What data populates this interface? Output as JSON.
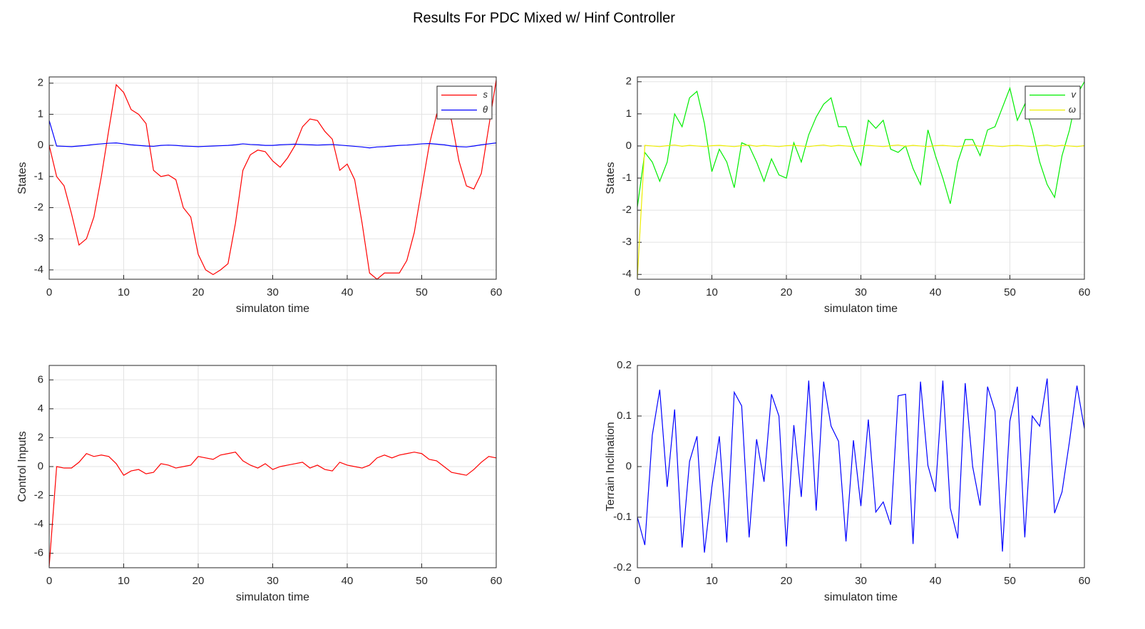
{
  "title": "Results For PDC Mixed w/ Hinf Controller",
  "chart_data": [
    {
      "type": "line",
      "xlabel": "simulaton time",
      "ylabel": "States",
      "x": [
        0,
        1,
        2,
        3,
        4,
        5,
        6,
        7,
        8,
        9,
        10,
        11,
        12,
        13,
        14,
        15,
        16,
        17,
        18,
        19,
        20,
        21,
        22,
        23,
        24,
        25,
        26,
        27,
        28,
        29,
        30,
        31,
        32,
        33,
        34,
        35,
        36,
        37,
        38,
        39,
        40,
        41,
        42,
        43,
        44,
        45,
        46,
        47,
        48,
        49,
        50,
        51,
        52,
        53,
        54,
        55,
        56,
        57,
        58,
        59,
        60
      ],
      "series": [
        {
          "name": "s",
          "color": "#ff0000",
          "values": [
            0,
            -1.0,
            -1.3,
            -2.2,
            -3.2,
            -3.0,
            -2.3,
            -1.0,
            0.5,
            1.95,
            1.7,
            1.15,
            1.0,
            0.7,
            -0.8,
            -1.0,
            -0.95,
            -1.1,
            -2.0,
            -2.3,
            -3.5,
            -4.0,
            -4.15,
            -4.0,
            -3.8,
            -2.5,
            -0.8,
            -0.3,
            -0.15,
            -0.2,
            -0.5,
            -0.7,
            -0.4,
            0.0,
            0.6,
            0.85,
            0.8,
            0.45,
            0.2,
            -0.8,
            -0.6,
            -1.1,
            -2.5,
            -4.1,
            -4.3,
            -4.1,
            -4.1,
            -4.1,
            -3.7,
            -2.8,
            -1.4,
            0.0,
            1.0,
            1.5,
            0.8,
            -0.5,
            -1.3,
            -1.4,
            -0.9,
            0.6,
            2.1
          ]
        },
        {
          "name": "θ",
          "color": "#0000ff",
          "values": [
            0.8,
            -0.02,
            -0.03,
            -0.04,
            -0.02,
            0.0,
            0.03,
            0.05,
            0.07,
            0.08,
            0.05,
            0.02,
            0.0,
            -0.02,
            -0.03,
            0.0,
            0.01,
            0.0,
            -0.02,
            -0.03,
            -0.04,
            -0.03,
            -0.02,
            -0.01,
            0.0,
            0.02,
            0.05,
            0.03,
            0.02,
            0.0,
            0.0,
            0.02,
            0.03,
            0.04,
            0.03,
            0.02,
            0.01,
            0.02,
            0.03,
            0.01,
            -0.01,
            -0.03,
            -0.05,
            -0.08,
            -0.05,
            -0.04,
            -0.02,
            0.0,
            0.01,
            0.03,
            0.05,
            0.06,
            0.04,
            0.02,
            -0.02,
            -0.04,
            -0.05,
            -0.02,
            0.02,
            0.05,
            0.08
          ]
        }
      ],
      "xlim": [
        0,
        60
      ],
      "xticks": [
        0,
        10,
        20,
        30,
        40,
        50,
        60
      ],
      "ylim": [
        -4.3,
        2.2
      ],
      "yticks": [
        -4,
        -3,
        -2,
        -1,
        0,
        1,
        2
      ],
      "grid": true,
      "legend": "upper right"
    },
    {
      "type": "line",
      "xlabel": "simulaton time",
      "ylabel": "States",
      "x": [
        0,
        1,
        2,
        3,
        4,
        5,
        6,
        7,
        8,
        9,
        10,
        11,
        12,
        13,
        14,
        15,
        16,
        17,
        18,
        19,
        20,
        21,
        22,
        23,
        24,
        25,
        26,
        27,
        28,
        29,
        30,
        31,
        32,
        33,
        34,
        35,
        36,
        37,
        38,
        39,
        40,
        41,
        42,
        43,
        44,
        45,
        46,
        47,
        48,
        49,
        50,
        51,
        52,
        53,
        54,
        55,
        56,
        57,
        58,
        59,
        60
      ],
      "series": [
        {
          "name": "v",
          "color": "#00ee00",
          "values": [
            -1.9,
            -0.2,
            -0.5,
            -1.1,
            -0.5,
            1.0,
            0.6,
            1.5,
            1.7,
            0.7,
            -0.8,
            -0.1,
            -0.5,
            -1.3,
            0.1,
            0.0,
            -0.5,
            -1.1,
            -0.4,
            -0.9,
            -1.0,
            0.1,
            -0.5,
            0.35,
            0.9,
            1.3,
            1.5,
            0.6,
            0.6,
            -0.1,
            -0.6,
            0.8,
            0.55,
            0.8,
            -0.1,
            -0.2,
            0.0,
            -0.7,
            -1.2,
            0.5,
            -0.3,
            -1.0,
            -1.8,
            -0.5,
            0.2,
            0.2,
            -0.3,
            0.5,
            0.6,
            1.2,
            1.8,
            0.8,
            1.3,
            0.5,
            -0.5,
            -1.2,
            -1.6,
            -0.3,
            0.5,
            1.6,
            2.0
          ]
        },
        {
          "name": "ω",
          "color": "#eeee00",
          "values": [
            -4.1,
            0.02,
            0.0,
            -0.02,
            0.01,
            0.03,
            -0.01,
            0.02,
            0.0,
            -0.02,
            0.01,
            0.02,
            0.0,
            -0.02,
            0.01,
            0.03,
            -0.01,
            0.02,
            0.0,
            -0.02,
            0.01,
            0.02,
            0.0,
            -0.02,
            0.01,
            0.03,
            -0.01,
            0.02,
            0.0,
            -0.02,
            0.01,
            0.02,
            0.0,
            -0.02,
            0.01,
            0.03,
            -0.01,
            0.02,
            0.0,
            -0.02,
            0.01,
            0.02,
            0.0,
            -0.02,
            0.01,
            0.03,
            -0.01,
            0.02,
            0.0,
            -0.02,
            0.01,
            0.02,
            0.0,
            -0.02,
            0.01,
            0.03,
            -0.01,
            0.02,
            0.0,
            -0.02,
            0.01
          ]
        }
      ],
      "xlim": [
        0,
        60
      ],
      "xticks": [
        0,
        10,
        20,
        30,
        40,
        50,
        60
      ],
      "ylim": [
        -4.15,
        2.15
      ],
      "yticks": [
        -4,
        -3,
        -2,
        -1,
        0,
        1,
        2
      ],
      "grid": true,
      "legend": "upper right"
    },
    {
      "type": "line",
      "xlabel": "simulaton time",
      "ylabel": "Control Inputs",
      "x": [
        0,
        1,
        2,
        3,
        4,
        5,
        6,
        7,
        8,
        9,
        10,
        11,
        12,
        13,
        14,
        15,
        16,
        17,
        18,
        19,
        20,
        21,
        22,
        23,
        24,
        25,
        26,
        27,
        28,
        29,
        30,
        31,
        32,
        33,
        34,
        35,
        36,
        37,
        38,
        39,
        40,
        41,
        42,
        43,
        44,
        45,
        46,
        47,
        48,
        49,
        50,
        51,
        52,
        53,
        54,
        55,
        56,
        57,
        58,
        59,
        60
      ],
      "values": [
        -6.9,
        0,
        -0.1,
        -0.1,
        0.3,
        0.9,
        0.7,
        0.8,
        0.7,
        0.2,
        -0.6,
        -0.3,
        -0.2,
        -0.5,
        -0.4,
        0.2,
        0.1,
        -0.1,
        0,
        0.1,
        0.7,
        0.6,
        0.5,
        0.8,
        0.9,
        1.0,
        0.4,
        0.1,
        -0.1,
        0.2,
        -0.2,
        0,
        0.1,
        0.2,
        0.3,
        -0.1,
        0.1,
        -0.2,
        -0.3,
        0.3,
        0.1,
        0,
        -0.1,
        0.1,
        0.6,
        0.8,
        0.6,
        0.8,
        0.9,
        1.0,
        0.9,
        0.5,
        0.4,
        0,
        -0.4,
        -0.5,
        -0.6,
        -0.2,
        0.3,
        0.7,
        0.6
      ],
      "color": "#ff0000",
      "xlim": [
        0,
        60
      ],
      "xticks": [
        0,
        10,
        20,
        30,
        40,
        50,
        60
      ],
      "ylim": [
        -7,
        7
      ],
      "yticks": [
        -6,
        -4,
        -2,
        0,
        2,
        4,
        6
      ],
      "grid": true
    },
    {
      "type": "line",
      "xlabel": "simulaton time",
      "ylabel": "Terrain Inclination",
      "x": [
        0,
        1,
        2,
        3,
        4,
        5,
        6,
        7,
        8,
        9,
        10,
        11,
        12,
        13,
        14,
        15,
        16,
        17,
        18,
        19,
        20,
        21,
        22,
        23,
        24,
        25,
        26,
        27,
        28,
        29,
        30,
        31,
        32,
        33,
        34,
        35,
        36,
        37,
        38,
        39,
        40,
        41,
        42,
        43,
        44,
        45,
        46,
        47,
        48,
        49,
        50,
        51,
        52,
        53,
        54,
        55,
        56,
        57,
        58,
        59,
        60
      ],
      "values": [
        -0.1,
        -0.155,
        0.062,
        0.152,
        -0.04,
        0.113,
        -0.16,
        0.01,
        0.06,
        -0.17,
        -0.04,
        0.06,
        -0.15,
        0.147,
        0.12,
        -0.14,
        0.054,
        -0.03,
        0.143,
        0.1,
        -0.158,
        0.082,
        -0.06,
        0.17,
        -0.087,
        0.168,
        0.08,
        0.05,
        -0.148,
        0.052,
        -0.078,
        0.093,
        -0.09,
        -0.07,
        -0.115,
        0.14,
        0.143,
        -0.153,
        0.168,
        0.002,
        -0.05,
        0.17,
        -0.082,
        -0.142,
        0.165,
        0.0,
        -0.077,
        0.158,
        0.11,
        -0.168,
        0.09,
        0.158,
        -0.14,
        0.1,
        0.08,
        0.174,
        -0.092,
        -0.05,
        0.05,
        0.16,
        0.075
      ],
      "color": "#0000ff",
      "xlim": [
        0,
        60
      ],
      "xticks": [
        0,
        10,
        20,
        30,
        40,
        50,
        60
      ],
      "ylim": [
        -0.2,
        0.2
      ],
      "yticks": [
        -0.2,
        -0.1,
        0,
        0.1,
        0.2
      ],
      "grid": true
    }
  ]
}
